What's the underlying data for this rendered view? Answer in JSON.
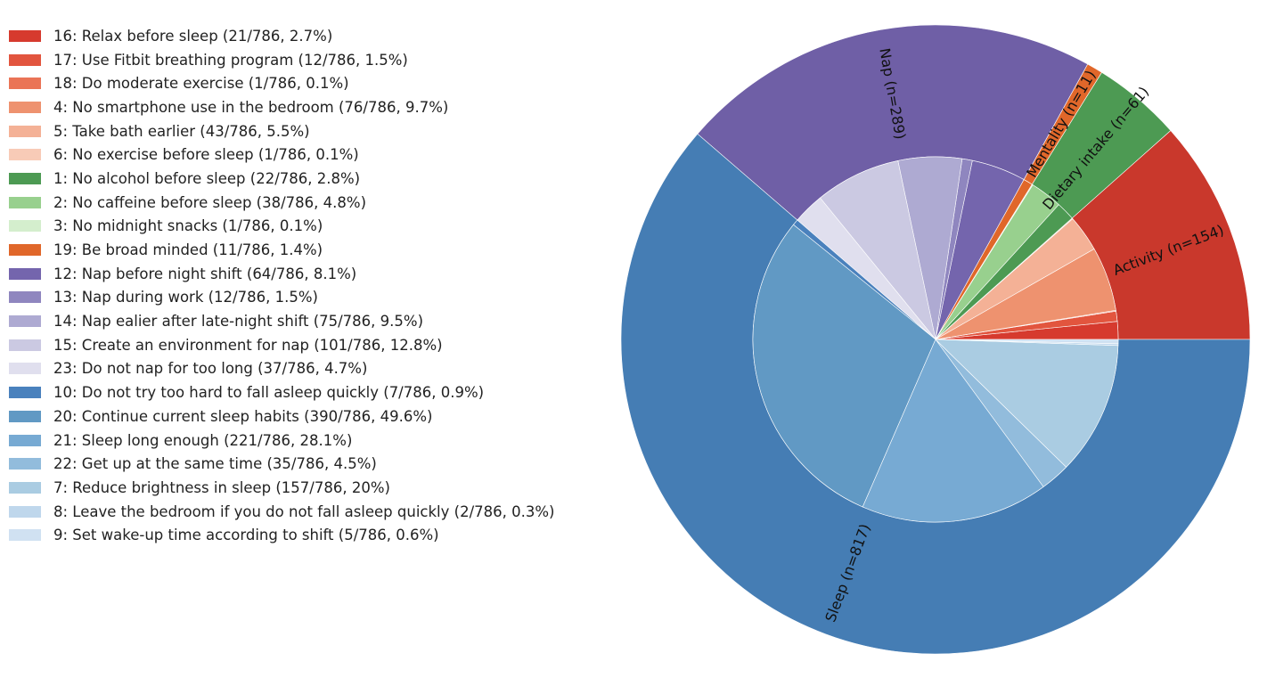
{
  "chart_data": {
    "type": "pie",
    "subtype": "nested-donut",
    "start_angle_deg": 0,
    "direction": "counterclockwise",
    "legend_position": "left",
    "outer": [
      {
        "label": "Activity (n=154)",
        "value": 154,
        "color": "#c9382c"
      },
      {
        "label": "Dietary intake (n=61)",
        "value": 61,
        "color": "#4d9a53"
      },
      {
        "label": "Mentality (n=11)",
        "value": 11,
        "color": "#e0672a"
      },
      {
        "label": "Nap (n=289)",
        "value": 289,
        "color": "#6f5fa6"
      },
      {
        "label": "Sleep (n=817)",
        "value": 817,
        "color": "#457db4"
      }
    ],
    "inner": [
      {
        "label": "16: Relax before sleep (21/786, 2.7%)",
        "value": 21,
        "color": "#d63a2e"
      },
      {
        "label": "17: Use Fitbit breathing program (12/786, 1.5%)",
        "value": 12,
        "color": "#e2553e"
      },
      {
        "label": "18: Do moderate exercise (1/786, 0.1%)",
        "value": 1,
        "color": "#ea7456"
      },
      {
        "label": "4: No smartphone use in the bedroom (76/786, 9.7%)",
        "value": 76,
        "color": "#ee926f"
      },
      {
        "label": "5: Take bath earlier (43/786, 5.5%)",
        "value": 43,
        "color": "#f4b196"
      },
      {
        "label": "6: No exercise before sleep (1/786, 0.1%)",
        "value": 1,
        "color": "#f8cbb7"
      },
      {
        "label": "1: No alcohol before sleep (22/786, 2.8%)",
        "value": 22,
        "color": "#4d9a53"
      },
      {
        "label": "2: No caffeine before sleep (38/786, 4.8%)",
        "value": 38,
        "color": "#98d08e"
      },
      {
        "label": "3: No midnight snacks (1/786, 0.1%)",
        "value": 1,
        "color": "#d4eecd"
      },
      {
        "label": "19: Be broad minded (11/786, 1.4%)",
        "value": 11,
        "color": "#e0672a"
      },
      {
        "label": "12: Nap before night shift (64/786, 8.1%)",
        "value": 64,
        "color": "#7465ad"
      },
      {
        "label": "13: Nap during work (12/786, 1.5%)",
        "value": 12,
        "color": "#8f86bf"
      },
      {
        "label": "14: Nap ealier after late-night shift (75/786, 9.5%)",
        "value": 75,
        "color": "#aeaad2"
      },
      {
        "label": "15: Create an environment for nap (101/786, 12.8%)",
        "value": 101,
        "color": "#cbc9e2"
      },
      {
        "label": "23: Do not nap for too long (37/786, 4.7%)",
        "value": 37,
        "color": "#e0dfee"
      },
      {
        "label": "10: Do not try too hard to fall asleep quickly (7/786, 0.9%)",
        "value": 7,
        "color": "#4a81bd"
      },
      {
        "label": "20: Continue current sleep habits (390/786, 49.6%)",
        "value": 390,
        "color": "#6199c4"
      },
      {
        "label": "21: Sleep long enough (221/786, 28.1%)",
        "value": 221,
        "color": "#77aad3"
      },
      {
        "label": "22: Get up at the same time (35/786, 4.5%)",
        "value": 35,
        "color": "#92bcdc"
      },
      {
        "label": "7: Reduce brightness in sleep (157/786, 20%)",
        "value": 157,
        "color": "#aacce2"
      },
      {
        "label": "8: Leave the bedroom if you do not fall asleep quickly (2/786, 0.3%)",
        "value": 2,
        "color": "#bfd7ec"
      },
      {
        "label": "9: Set wake-up time according to shift (5/786, 0.6%)",
        "value": 5,
        "color": "#d0e1f2"
      }
    ]
  }
}
